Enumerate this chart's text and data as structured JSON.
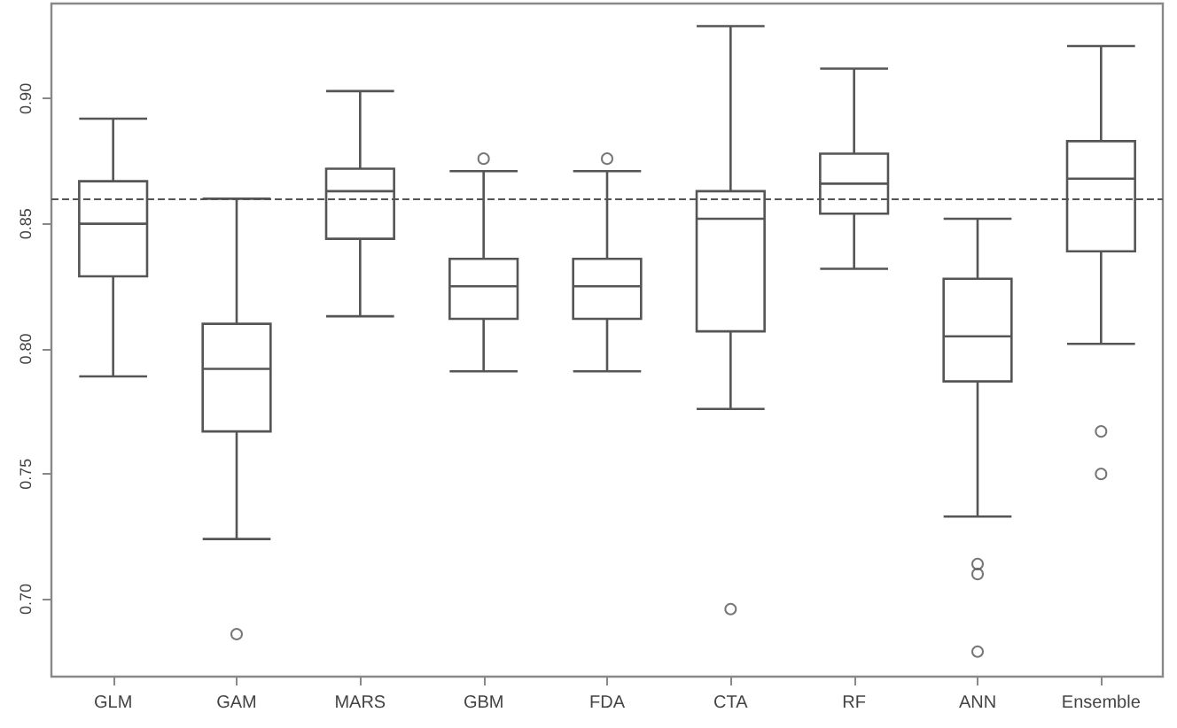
{
  "chart_data": {
    "type": "box",
    "categories": [
      "GLM",
      "GAM",
      "MARS",
      "GBM",
      "FDA",
      "CTA",
      "RF",
      "ANN",
      "Ensemble"
    ],
    "color": "#555555",
    "marker": "circle",
    "boxes": [
      {
        "low": 0.789,
        "q1": 0.829,
        "median": 0.85,
        "q3": 0.867,
        "high": 0.892
      },
      {
        "low": 0.724,
        "q1": 0.767,
        "median": 0.792,
        "q3": 0.81,
        "high": 0.86,
        "outliers": [
          0.686
        ]
      },
      {
        "low": 0.813,
        "q1": 0.844,
        "median": 0.863,
        "q3": 0.872,
        "high": 0.903
      },
      {
        "low": 0.791,
        "q1": 0.812,
        "median": 0.825,
        "q3": 0.836,
        "high": 0.871,
        "outliers": [
          0.876
        ]
      },
      {
        "low": 0.791,
        "q1": 0.812,
        "median": 0.825,
        "q3": 0.836,
        "high": 0.871,
        "outliers": [
          0.876
        ]
      },
      {
        "low": 0.776,
        "q1": 0.807,
        "median": 0.852,
        "q3": 0.863,
        "high": 0.929,
        "outliers": [
          0.696
        ]
      },
      {
        "low": 0.832,
        "q1": 0.854,
        "median": 0.866,
        "q3": 0.878,
        "high": 0.912
      },
      {
        "low": 0.733,
        "q1": 0.787,
        "median": 0.805,
        "q3": 0.828,
        "high": 0.852,
        "outliers": [
          0.714,
          0.71,
          0.679
        ]
      },
      {
        "low": 0.802,
        "q1": 0.839,
        "median": 0.868,
        "q3": 0.883,
        "high": 0.921,
        "outliers": [
          0.767,
          0.75
        ]
      }
    ],
    "ylim": [
      0.669,
      0.938
    ],
    "yticks": [
      {
        "value": 0.7,
        "label": "0.70"
      },
      {
        "value": 0.75,
        "label": "0.75"
      },
      {
        "value": 0.8,
        "label": "0.80"
      },
      {
        "value": 0.85,
        "label": "0.85"
      },
      {
        "value": 0.9,
        "label": "0.90"
      }
    ],
    "ref_lines": [
      {
        "axis": "y",
        "value": 0.86,
        "label": null,
        "color": "#555555",
        "line_style": "dashed"
      }
    ]
  }
}
